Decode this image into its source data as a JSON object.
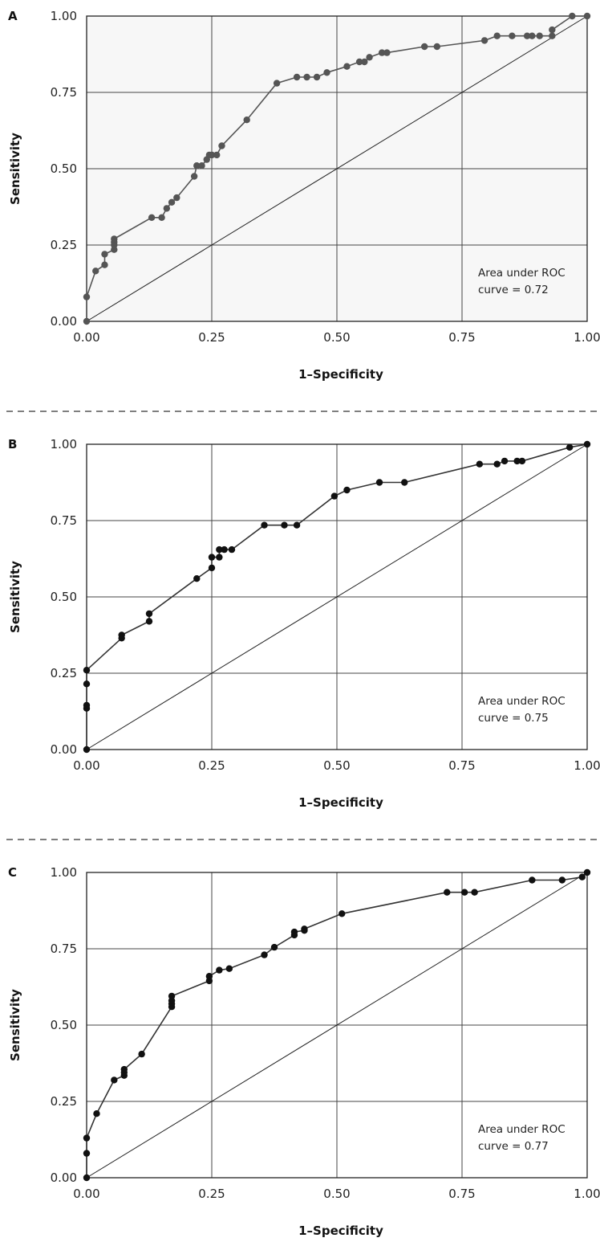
{
  "chart_data": [
    {
      "panel": "A",
      "type": "line",
      "xlabel": "1–Specificity",
      "ylabel": "Sensitivity",
      "xlim": [
        0,
        1
      ],
      "ylim": [
        0,
        1
      ],
      "xticks": [
        "0.00",
        "0.25",
        "0.50",
        "0.75",
        "1.00"
      ],
      "yticks": [
        "0.00",
        "0.25",
        "0.50",
        "0.75",
        "1.00"
      ],
      "grid": true,
      "annotation": [
        "Area under ROC",
        "curve = 0.72"
      ],
      "line_color": "#555555",
      "point_color": "#555555",
      "shaded_background": true,
      "diagonal_reference": true,
      "x": [
        0,
        0,
        0.018,
        0.036,
        0.036,
        0.055,
        0.055,
        0.055,
        0.055,
        0.13,
        0.15,
        0.16,
        0.17,
        0.18,
        0.215,
        0.22,
        0.23,
        0.24,
        0.245,
        0.25,
        0.25,
        0.26,
        0.27,
        0.32,
        0.38,
        0.42,
        0.44,
        0.46,
        0.48,
        0.52,
        0.545,
        0.555,
        0.565,
        0.59,
        0.6,
        0.675,
        0.7,
        0.795,
        0.82,
        0.85,
        0.88,
        0.89,
        0.905,
        0.93,
        0.93,
        0.97,
        1.0
      ],
      "y": [
        0,
        0.08,
        0.165,
        0.185,
        0.22,
        0.235,
        0.25,
        0.26,
        0.27,
        0.34,
        0.34,
        0.37,
        0.39,
        0.405,
        0.475,
        0.51,
        0.51,
        0.53,
        0.545,
        0.545,
        0.545,
        0.545,
        0.575,
        0.66,
        0.78,
        0.8,
        0.8,
        0.8,
        0.815,
        0.835,
        0.85,
        0.85,
        0.865,
        0.88,
        0.88,
        0.9,
        0.9,
        0.92,
        0.935,
        0.935,
        0.935,
        0.935,
        0.935,
        0.935,
        0.955,
        1.0,
        1.0
      ]
    },
    {
      "panel": "B",
      "type": "line",
      "xlabel": "1–Specificity",
      "ylabel": "Sensitivity",
      "xlim": [
        0,
        1
      ],
      "ylim": [
        0,
        1
      ],
      "xticks": [
        "0.00",
        "0.25",
        "0.50",
        "0.75",
        "1.00"
      ],
      "yticks": [
        "0.00",
        "0.25",
        "0.50",
        "0.75",
        "1.00"
      ],
      "grid": true,
      "annotation": [
        "Area under ROC",
        "curve = 0.75"
      ],
      "line_color": "#333333",
      "point_color": "#111111",
      "shaded_background": false,
      "diagonal_reference": true,
      "x": [
        0,
        0,
        0,
        0,
        0,
        0.07,
        0.07,
        0.125,
        0.125,
        0.22,
        0.25,
        0.25,
        0.265,
        0.265,
        0.275,
        0.29,
        0.355,
        0.395,
        0.42,
        0.495,
        0.52,
        0.585,
        0.635,
        0.785,
        0.82,
        0.835,
        0.86,
        0.87,
        0.965,
        1.0
      ],
      "y": [
        0,
        0.135,
        0.145,
        0.215,
        0.26,
        0.365,
        0.375,
        0.42,
        0.445,
        0.56,
        0.595,
        0.63,
        0.63,
        0.655,
        0.655,
        0.655,
        0.735,
        0.735,
        0.735,
        0.83,
        0.85,
        0.875,
        0.875,
        0.935,
        0.935,
        0.945,
        0.945,
        0.945,
        0.99,
        1.0
      ]
    },
    {
      "panel": "C",
      "type": "line",
      "xlabel": "1–Specificity",
      "ylabel": "Sensitivity",
      "xlim": [
        0,
        1
      ],
      "ylim": [
        0,
        1
      ],
      "xticks": [
        "0.00",
        "0.25",
        "0.50",
        "0.75",
        "1.00"
      ],
      "yticks": [
        "0.00",
        "0.25",
        "0.50",
        "0.75",
        "1.00"
      ],
      "grid": true,
      "annotation": [
        "Area under ROC",
        "curve = 0.77"
      ],
      "line_color": "#333333",
      "point_color": "#111111",
      "shaded_background": false,
      "diagonal_reference": true,
      "x": [
        0,
        0,
        0,
        0.02,
        0.055,
        0.075,
        0.075,
        0.075,
        0.11,
        0.17,
        0.17,
        0.17,
        0.17,
        0.245,
        0.245,
        0.265,
        0.285,
        0.355,
        0.375,
        0.415,
        0.415,
        0.435,
        0.435,
        0.51,
        0.72,
        0.755,
        0.775,
        0.89,
        0.95,
        0.99,
        1.0
      ],
      "y": [
        0,
        0.08,
        0.13,
        0.21,
        0.32,
        0.335,
        0.345,
        0.355,
        0.405,
        0.56,
        0.57,
        0.58,
        0.595,
        0.645,
        0.66,
        0.68,
        0.685,
        0.73,
        0.755,
        0.795,
        0.805,
        0.81,
        0.815,
        0.865,
        0.935,
        0.935,
        0.935,
        0.975,
        0.975,
        0.985,
        1.0
      ]
    }
  ]
}
